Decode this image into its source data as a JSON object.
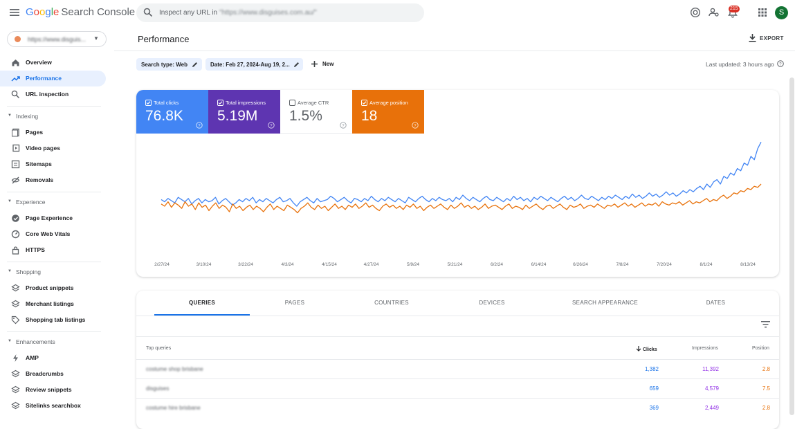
{
  "app": {
    "logo_google": [
      "G",
      "o",
      "o",
      "g",
      "l",
      "e"
    ],
    "logo_product": "Search Console",
    "search_placeholder": "Inspect any URL in",
    "search_domain": "\"https://www.disguises.com.au/\"",
    "notification_count": "215",
    "avatar_initial": "S",
    "colors": {
      "blue": "#4285f4",
      "purple": "#5e35b1",
      "orange": "#e8710a",
      "accent": "#1a73e8"
    }
  },
  "sidebar": {
    "property": "https://www.disguis...",
    "top_items": [
      {
        "label": "Overview",
        "icon": "home-icon"
      },
      {
        "label": "Performance",
        "icon": "trending-up-icon",
        "active": true
      },
      {
        "label": "URL inspection",
        "icon": "search-icon"
      }
    ],
    "sections": [
      {
        "label": "Indexing",
        "items": [
          {
            "label": "Pages",
            "icon": "pages-icon"
          },
          {
            "label": "Video pages",
            "icon": "video-pages-icon"
          },
          {
            "label": "Sitemaps",
            "icon": "sitemaps-icon"
          },
          {
            "label": "Removals",
            "icon": "removals-icon"
          }
        ]
      },
      {
        "label": "Experience",
        "items": [
          {
            "label": "Page Experience",
            "icon": "page-experience-icon"
          },
          {
            "label": "Core Web Vitals",
            "icon": "core-web-vitals-icon"
          },
          {
            "label": "HTTPS",
            "icon": "lock-icon"
          }
        ]
      },
      {
        "label": "Shopping",
        "items": [
          {
            "label": "Product snippets",
            "icon": "product-snippets-icon"
          },
          {
            "label": "Merchant listings",
            "icon": "merchant-listings-icon"
          },
          {
            "label": "Shopping tab listings",
            "icon": "tag-icon"
          }
        ]
      },
      {
        "label": "Enhancements",
        "items": [
          {
            "label": "AMP",
            "icon": "amp-icon"
          },
          {
            "label": "Breadcrumbs",
            "icon": "breadcrumbs-icon"
          },
          {
            "label": "Review snippets",
            "icon": "review-snippets-icon"
          },
          {
            "label": "Sitelinks searchbox",
            "icon": "sitelinks-icon"
          }
        ]
      }
    ]
  },
  "header": {
    "title": "Performance",
    "export_label": "EXPORT",
    "filter_search_type": "Search type: Web",
    "filter_date": "Date: Feb 27, 2024-Aug 19, 2...",
    "new_label": "New",
    "last_updated": "Last updated: 3 hours ago"
  },
  "metrics": [
    {
      "label": "Total clicks",
      "value": "76.8K",
      "checked": true,
      "color": "#4285f4"
    },
    {
      "label": "Total impressions",
      "value": "5.19M",
      "checked": true,
      "color": "#5e35b1"
    },
    {
      "label": "Average CTR",
      "value": "1.5%",
      "checked": false,
      "color": "#ffffff"
    },
    {
      "label": "Average position",
      "value": "18",
      "checked": true,
      "color": "#e8710a"
    }
  ],
  "chart_data": {
    "type": "line",
    "x_tick_labels": [
      "2/27/24",
      "3/10/24",
      "3/22/24",
      "4/3/24",
      "4/15/24",
      "4/27/24",
      "5/9/24",
      "5/21/24",
      "6/2/24",
      "6/14/24",
      "6/26/24",
      "7/8/24",
      "7/20/24",
      "8/1/24",
      "8/13/24"
    ],
    "series": [
      {
        "name": "Total clicks",
        "color": "#4285f4",
        "values": [
          46,
          44,
          47,
          45,
          43,
          48,
          46,
          44,
          47,
          42,
          45,
          47,
          43,
          46,
          44,
          45,
          48,
          42,
          45,
          47,
          44,
          41,
          43,
          46,
          44,
          47,
          45,
          48,
          43,
          46,
          44,
          47,
          45,
          43,
          46,
          48,
          44,
          45,
          47,
          43,
          40,
          44,
          46,
          48,
          45,
          43,
          47,
          44,
          45,
          46,
          49,
          47,
          44,
          46,
          48,
          45,
          43,
          47,
          46,
          44,
          47,
          45,
          49,
          46,
          44,
          47,
          45,
          48,
          46,
          44,
          47,
          45,
          43,
          48,
          46,
          44,
          47,
          49,
          46,
          44,
          47,
          45,
          48,
          46,
          45,
          47,
          44,
          48,
          46,
          50,
          47,
          45,
          48,
          46,
          44,
          47,
          49,
          46,
          45,
          48,
          46,
          44,
          47,
          45,
          49,
          46,
          48,
          45,
          47,
          44,
          48,
          46,
          49,
          47,
          45,
          48,
          46,
          44,
          47,
          49,
          46,
          48,
          45,
          47,
          50,
          47,
          46,
          49,
          47,
          45,
          48,
          46,
          49,
          47,
          50,
          48,
          46,
          49,
          47,
          51,
          48,
          50,
          47,
          49,
          52,
          49,
          51,
          48,
          50,
          53,
          50,
          52,
          49,
          51,
          54,
          52,
          55,
          53,
          56,
          58,
          55,
          60,
          57,
          62,
          64,
          60,
          67,
          65,
          70,
          68,
          74,
          72,
          79,
          77,
          85,
          82,
          92,
          98
        ]
      },
      {
        "name": "Average position",
        "color": "#e8710a",
        "values": [
          42,
          40,
          44,
          39,
          43,
          41,
          38,
          44,
          40,
          42,
          37,
          43,
          39,
          41,
          36,
          40,
          43,
          38,
          41,
          39,
          35,
          42,
          38,
          40,
          36,
          39,
          41,
          37,
          40,
          38,
          35,
          39,
          42,
          37,
          40,
          38,
          36,
          41,
          39,
          37,
          34,
          38,
          40,
          43,
          39,
          37,
          41,
          38,
          40,
          36,
          39,
          42,
          38,
          40,
          37,
          41,
          39,
          42,
          38,
          40,
          43,
          39,
          41,
          38,
          36,
          40,
          42,
          39,
          41,
          38,
          40,
          37,
          41,
          39,
          42,
          38,
          40,
          36,
          39,
          41,
          38,
          40,
          42,
          39,
          37,
          41,
          38,
          40,
          43,
          39,
          41,
          38,
          40,
          37,
          39,
          42,
          38,
          40,
          41,
          39,
          37,
          40,
          42,
          38,
          40,
          39,
          37,
          41,
          38,
          40,
          42,
          39,
          37,
          40,
          41,
          38,
          40,
          42,
          39,
          37,
          41,
          39,
          40,
          42,
          38,
          40,
          41,
          39,
          42,
          40,
          38,
          41,
          40,
          42,
          39,
          41,
          43,
          40,
          42,
          39,
          41,
          43,
          40,
          42,
          41,
          43,
          40,
          44,
          42,
          41,
          43,
          42,
          44,
          41,
          43,
          45,
          42,
          44,
          43,
          45,
          47,
          44,
          46,
          45,
          48,
          50,
          47,
          49,
          52,
          51,
          54,
          53,
          56,
          55,
          58,
          57,
          60
        ]
      }
    ]
  },
  "tabs": [
    "QUERIES",
    "PAGES",
    "COUNTRIES",
    "DEVICES",
    "SEARCH APPEARANCE",
    "DATES"
  ],
  "table": {
    "headers": {
      "query": "Top queries",
      "clicks": "Clicks",
      "impressions": "Impressions",
      "position": "Position"
    },
    "rows": [
      {
        "query": "costume shop brisbane",
        "clicks": "1,382",
        "impressions": "11,392",
        "position": "2.8"
      },
      {
        "query": "disguises",
        "clicks": "659",
        "impressions": "4,579",
        "position": "7.5"
      },
      {
        "query": "costume hire brisbane",
        "clicks": "369",
        "impressions": "2,449",
        "position": "2.8"
      }
    ]
  }
}
